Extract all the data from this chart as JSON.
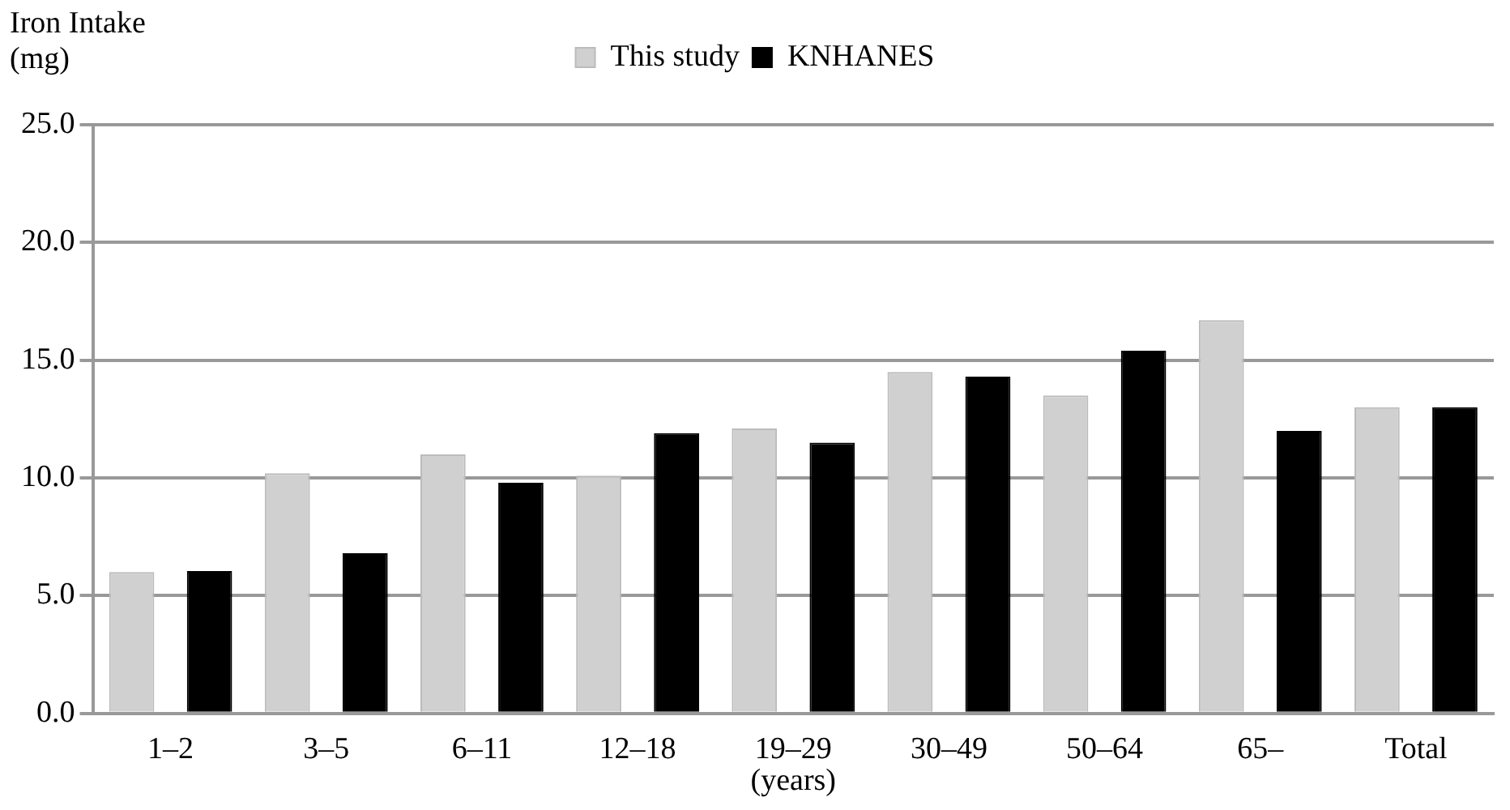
{
  "chart_data": {
    "type": "bar",
    "ylabel": "Iron Intake\n(mg)",
    "xlabel": "(years)",
    "categories": [
      "1–2",
      "3–5",
      "6–11",
      "12–18",
      "19–29",
      "30–49",
      "50–64",
      "65–",
      "Total"
    ],
    "series": [
      {
        "name": "This study",
        "color": "#d0d0d0",
        "values": [
          6.0,
          10.2,
          11.0,
          10.1,
          12.1,
          14.5,
          13.5,
          16.7,
          13.0
        ]
      },
      {
        "name": "KNHANES",
        "color": "#000000",
        "values": [
          6.05,
          6.8,
          9.8,
          11.9,
          11.5,
          14.3,
          15.4,
          12.0,
          13.0
        ]
      }
    ],
    "ylim": [
      0,
      25
    ],
    "yticks": [
      {
        "value": 0,
        "label": "0.0"
      },
      {
        "value": 5,
        "label": "5.0"
      },
      {
        "value": 10,
        "label": "10.0"
      },
      {
        "value": 15,
        "label": "15.0"
      },
      {
        "value": 20,
        "label": "20.0"
      },
      {
        "value": 25,
        "label": "25.0"
      }
    ],
    "grid": "y",
    "legend": "top"
  }
}
